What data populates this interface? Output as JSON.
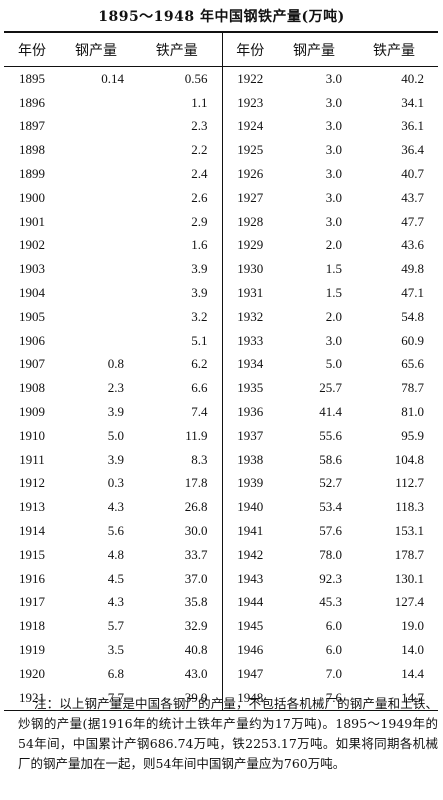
{
  "title": "1895～1948 年中国钢铁产量(万吨)",
  "headers": [
    "年份",
    "钢产量",
    "铁产量",
    "年份",
    "钢产量",
    "铁产量"
  ],
  "left_rows": [
    {
      "year": "1895",
      "steel": "0.14",
      "iron": "0.56"
    },
    {
      "year": "1896",
      "steel": "",
      "iron": "1.1"
    },
    {
      "year": "1897",
      "steel": "",
      "iron": "2.3"
    },
    {
      "year": "1898",
      "steel": "",
      "iron": "2.2"
    },
    {
      "year": "1899",
      "steel": "",
      "iron": "2.4"
    },
    {
      "year": "1900",
      "steel": "",
      "iron": "2.6"
    },
    {
      "year": "1901",
      "steel": "",
      "iron": "2.9"
    },
    {
      "year": "1902",
      "steel": "",
      "iron": "1.6"
    },
    {
      "year": "1903",
      "steel": "",
      "iron": "3.9"
    },
    {
      "year": "1904",
      "steel": "",
      "iron": "3.9"
    },
    {
      "year": "1905",
      "steel": "",
      "iron": "3.2"
    },
    {
      "year": "1906",
      "steel": "",
      "iron": "5.1"
    },
    {
      "year": "1907",
      "steel": "0.8",
      "iron": "6.2"
    },
    {
      "year": "1908",
      "steel": "2.3",
      "iron": "6.6"
    },
    {
      "year": "1909",
      "steel": "3.9",
      "iron": "7.4"
    },
    {
      "year": "1910",
      "steel": "5.0",
      "iron": "11.9"
    },
    {
      "year": "1911",
      "steel": "3.9",
      "iron": "8.3"
    },
    {
      "year": "1912",
      "steel": "0.3",
      "iron": "17.8"
    },
    {
      "year": "1913",
      "steel": "4.3",
      "iron": "26.8"
    },
    {
      "year": "1914",
      "steel": "5.6",
      "iron": "30.0"
    },
    {
      "year": "1915",
      "steel": "4.8",
      "iron": "33.7"
    },
    {
      "year": "1916",
      "steel": "4.5",
      "iron": "37.0"
    },
    {
      "year": "1917",
      "steel": "4.3",
      "iron": "35.8"
    },
    {
      "year": "1918",
      "steel": "5.7",
      "iron": "32.9"
    },
    {
      "year": "1919",
      "steel": "3.5",
      "iron": "40.8"
    },
    {
      "year": "1920",
      "steel": "6.8",
      "iron": "43.0"
    },
    {
      "year": "1921",
      "steel": "7.7",
      "iron": "39.9"
    }
  ],
  "right_rows": [
    {
      "year": "1922",
      "steel": "3.0",
      "iron": "40.2"
    },
    {
      "year": "1923",
      "steel": "3.0",
      "iron": "34.1"
    },
    {
      "year": "1924",
      "steel": "3.0",
      "iron": "36.1"
    },
    {
      "year": "1925",
      "steel": "3.0",
      "iron": "36.4"
    },
    {
      "year": "1926",
      "steel": "3.0",
      "iron": "40.7"
    },
    {
      "year": "1927",
      "steel": "3.0",
      "iron": "43.7"
    },
    {
      "year": "1928",
      "steel": "3.0",
      "iron": "47.7"
    },
    {
      "year": "1929",
      "steel": "2.0",
      "iron": "43.6"
    },
    {
      "year": "1930",
      "steel": "1.5",
      "iron": "49.8"
    },
    {
      "year": "1931",
      "steel": "1.5",
      "iron": "47.1"
    },
    {
      "year": "1932",
      "steel": "2.0",
      "iron": "54.8"
    },
    {
      "year": "1933",
      "steel": "3.0",
      "iron": "60.9"
    },
    {
      "year": "1934",
      "steel": "5.0",
      "iron": "65.6"
    },
    {
      "year": "1935",
      "steel": "25.7",
      "iron": "78.7"
    },
    {
      "year": "1936",
      "steel": "41.4",
      "iron": "81.0"
    },
    {
      "year": "1937",
      "steel": "55.6",
      "iron": "95.9"
    },
    {
      "year": "1938",
      "steel": "58.6",
      "iron": "104.8"
    },
    {
      "year": "1939",
      "steel": "52.7",
      "iron": "112.7"
    },
    {
      "year": "1940",
      "steel": "53.4",
      "iron": "118.3"
    },
    {
      "year": "1941",
      "steel": "57.6",
      "iron": "153.1"
    },
    {
      "year": "1942",
      "steel": "78.0",
      "iron": "178.7"
    },
    {
      "year": "1943",
      "steel": "92.3",
      "iron": "130.1"
    },
    {
      "year": "1944",
      "steel": "45.3",
      "iron": "127.4"
    },
    {
      "year": "1945",
      "steel": "6.0",
      "iron": "19.0"
    },
    {
      "year": "1946",
      "steel": "6.0",
      "iron": "14.0"
    },
    {
      "year": "1947",
      "steel": "7.0",
      "iron": "14.4"
    },
    {
      "year": "1948",
      "steel": "7.6",
      "iron": "14.7"
    }
  ],
  "note": {
    "label": "注：",
    "text": "以上钢产量是中国各钢厂的产量，不包括各机械厂的钢产量和土铁、炒钢的产量(据1916年的统计土铁年产量约为17万吨)。1895～1949年的54年间，中国累计产钢686.74万吨，铁2253.17万吨。如果将同期各机械厂的钢产量加在一起，则54年间中国钢产量应为760万吨。"
  }
}
